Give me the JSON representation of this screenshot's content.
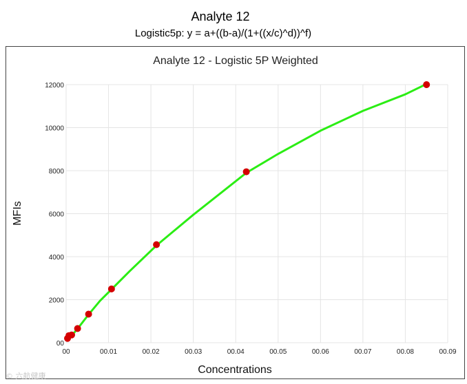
{
  "page": {
    "title": "Analyte 12",
    "subtitle": "Logistic5p: y = a+((b-a)/(1+((x/c)^d))^f)"
  },
  "watermark": {
    "text": "© 六航健康"
  },
  "chart_data": {
    "type": "scatter",
    "title": "Analyte 12 - Logistic 5P Weighted",
    "xlabel": "Concentrations",
    "ylabel": "MFIs",
    "xlim": [
      0,
      0.09
    ],
    "ylim": [
      0,
      12000
    ],
    "x_ticks": [
      0,
      0.01,
      0.02,
      0.03,
      0.04,
      0.05,
      0.06,
      0.07,
      0.08,
      0.09
    ],
    "x_tick_labels": [
      "00",
      "00.01",
      "00.02",
      "00.03",
      "00.04",
      "00.05",
      "00.06",
      "00.07",
      "00.08",
      "00.09"
    ],
    "y_ticks": [
      0,
      2000,
      4000,
      6000,
      8000,
      10000,
      12000
    ],
    "y_tick_labels": [
      "00",
      "2000",
      "4000",
      "6000",
      "8000",
      "10000",
      "12000"
    ],
    "grid": true,
    "points": [
      {
        "x": 0.00033,
        "y": 200
      },
      {
        "x": 0.00066,
        "y": 330
      },
      {
        "x": 0.0013,
        "y": 360
      },
      {
        "x": 0.0027,
        "y": 660
      },
      {
        "x": 0.0053,
        "y": 1330
      },
      {
        "x": 0.0107,
        "y": 2500
      },
      {
        "x": 0.0213,
        "y": 4560
      },
      {
        "x": 0.0425,
        "y": 7950
      },
      {
        "x": 0.085,
        "y": 12000
      }
    ],
    "fit_curve": [
      {
        "x": 0.0003,
        "y": 120
      },
      {
        "x": 0.0013,
        "y": 330
      },
      {
        "x": 0.0027,
        "y": 650
      },
      {
        "x": 0.0053,
        "y": 1310
      },
      {
        "x": 0.008,
        "y": 1950
      },
      {
        "x": 0.0107,
        "y": 2480
      },
      {
        "x": 0.015,
        "y": 3330
      },
      {
        "x": 0.0213,
        "y": 4520
      },
      {
        "x": 0.03,
        "y": 5950
      },
      {
        "x": 0.0425,
        "y": 7900
      },
      {
        "x": 0.05,
        "y": 8780
      },
      {
        "x": 0.06,
        "y": 9860
      },
      {
        "x": 0.07,
        "y": 10780
      },
      {
        "x": 0.08,
        "y": 11550
      },
      {
        "x": 0.085,
        "y": 12030
      }
    ],
    "colors": {
      "points": "#d40000",
      "curve": "#2bed14",
      "grid": "#e4e4e4",
      "axis_text": "#222222"
    }
  }
}
